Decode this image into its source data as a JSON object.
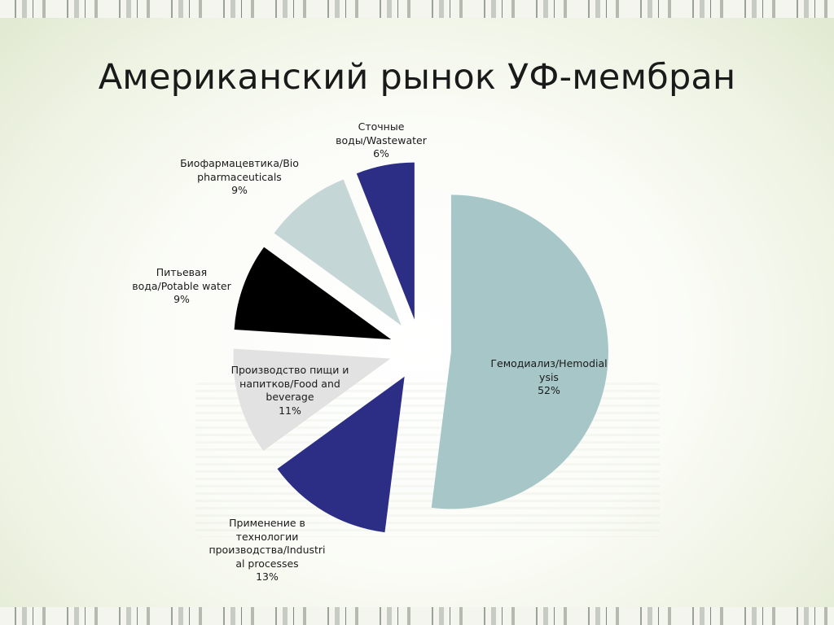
{
  "title": "Американский рынок УФ-мембран",
  "chart_data": {
    "type": "pie",
    "title": "Американский рынок УФ-мембран",
    "slices": [
      {
        "label_lines": [
          "Гемодиализ/Hemodial",
          "ysis"
        ],
        "value": 52,
        "pct": "52%",
        "color": "#a6c6c8"
      },
      {
        "label_lines": [
          "Применение в",
          "технологии",
          "производства/Industri",
          "al processes"
        ],
        "value": 13,
        "pct": "13%",
        "color": "#2c2e86"
      },
      {
        "label_lines": [
          "Производство пищи и",
          "напитков/Food and",
          "beverage"
        ],
        "value": 11,
        "pct": "11%",
        "color": "#e2e2e2"
      },
      {
        "label_lines": [
          "Питьевая",
          "вода/Potable water"
        ],
        "value": 9,
        "pct": "9%",
        "color": "#000000"
      },
      {
        "label_lines": [
          "Биофармацевтика/Bio",
          "pharmaceuticals"
        ],
        "value": 9,
        "pct": "9%",
        "color": "#c5d6d6"
      },
      {
        "label_lines": [
          "Сточные",
          "воды/Wastewater"
        ],
        "value": 6,
        "pct": "6%",
        "color": "#2c2e86"
      }
    ]
  }
}
